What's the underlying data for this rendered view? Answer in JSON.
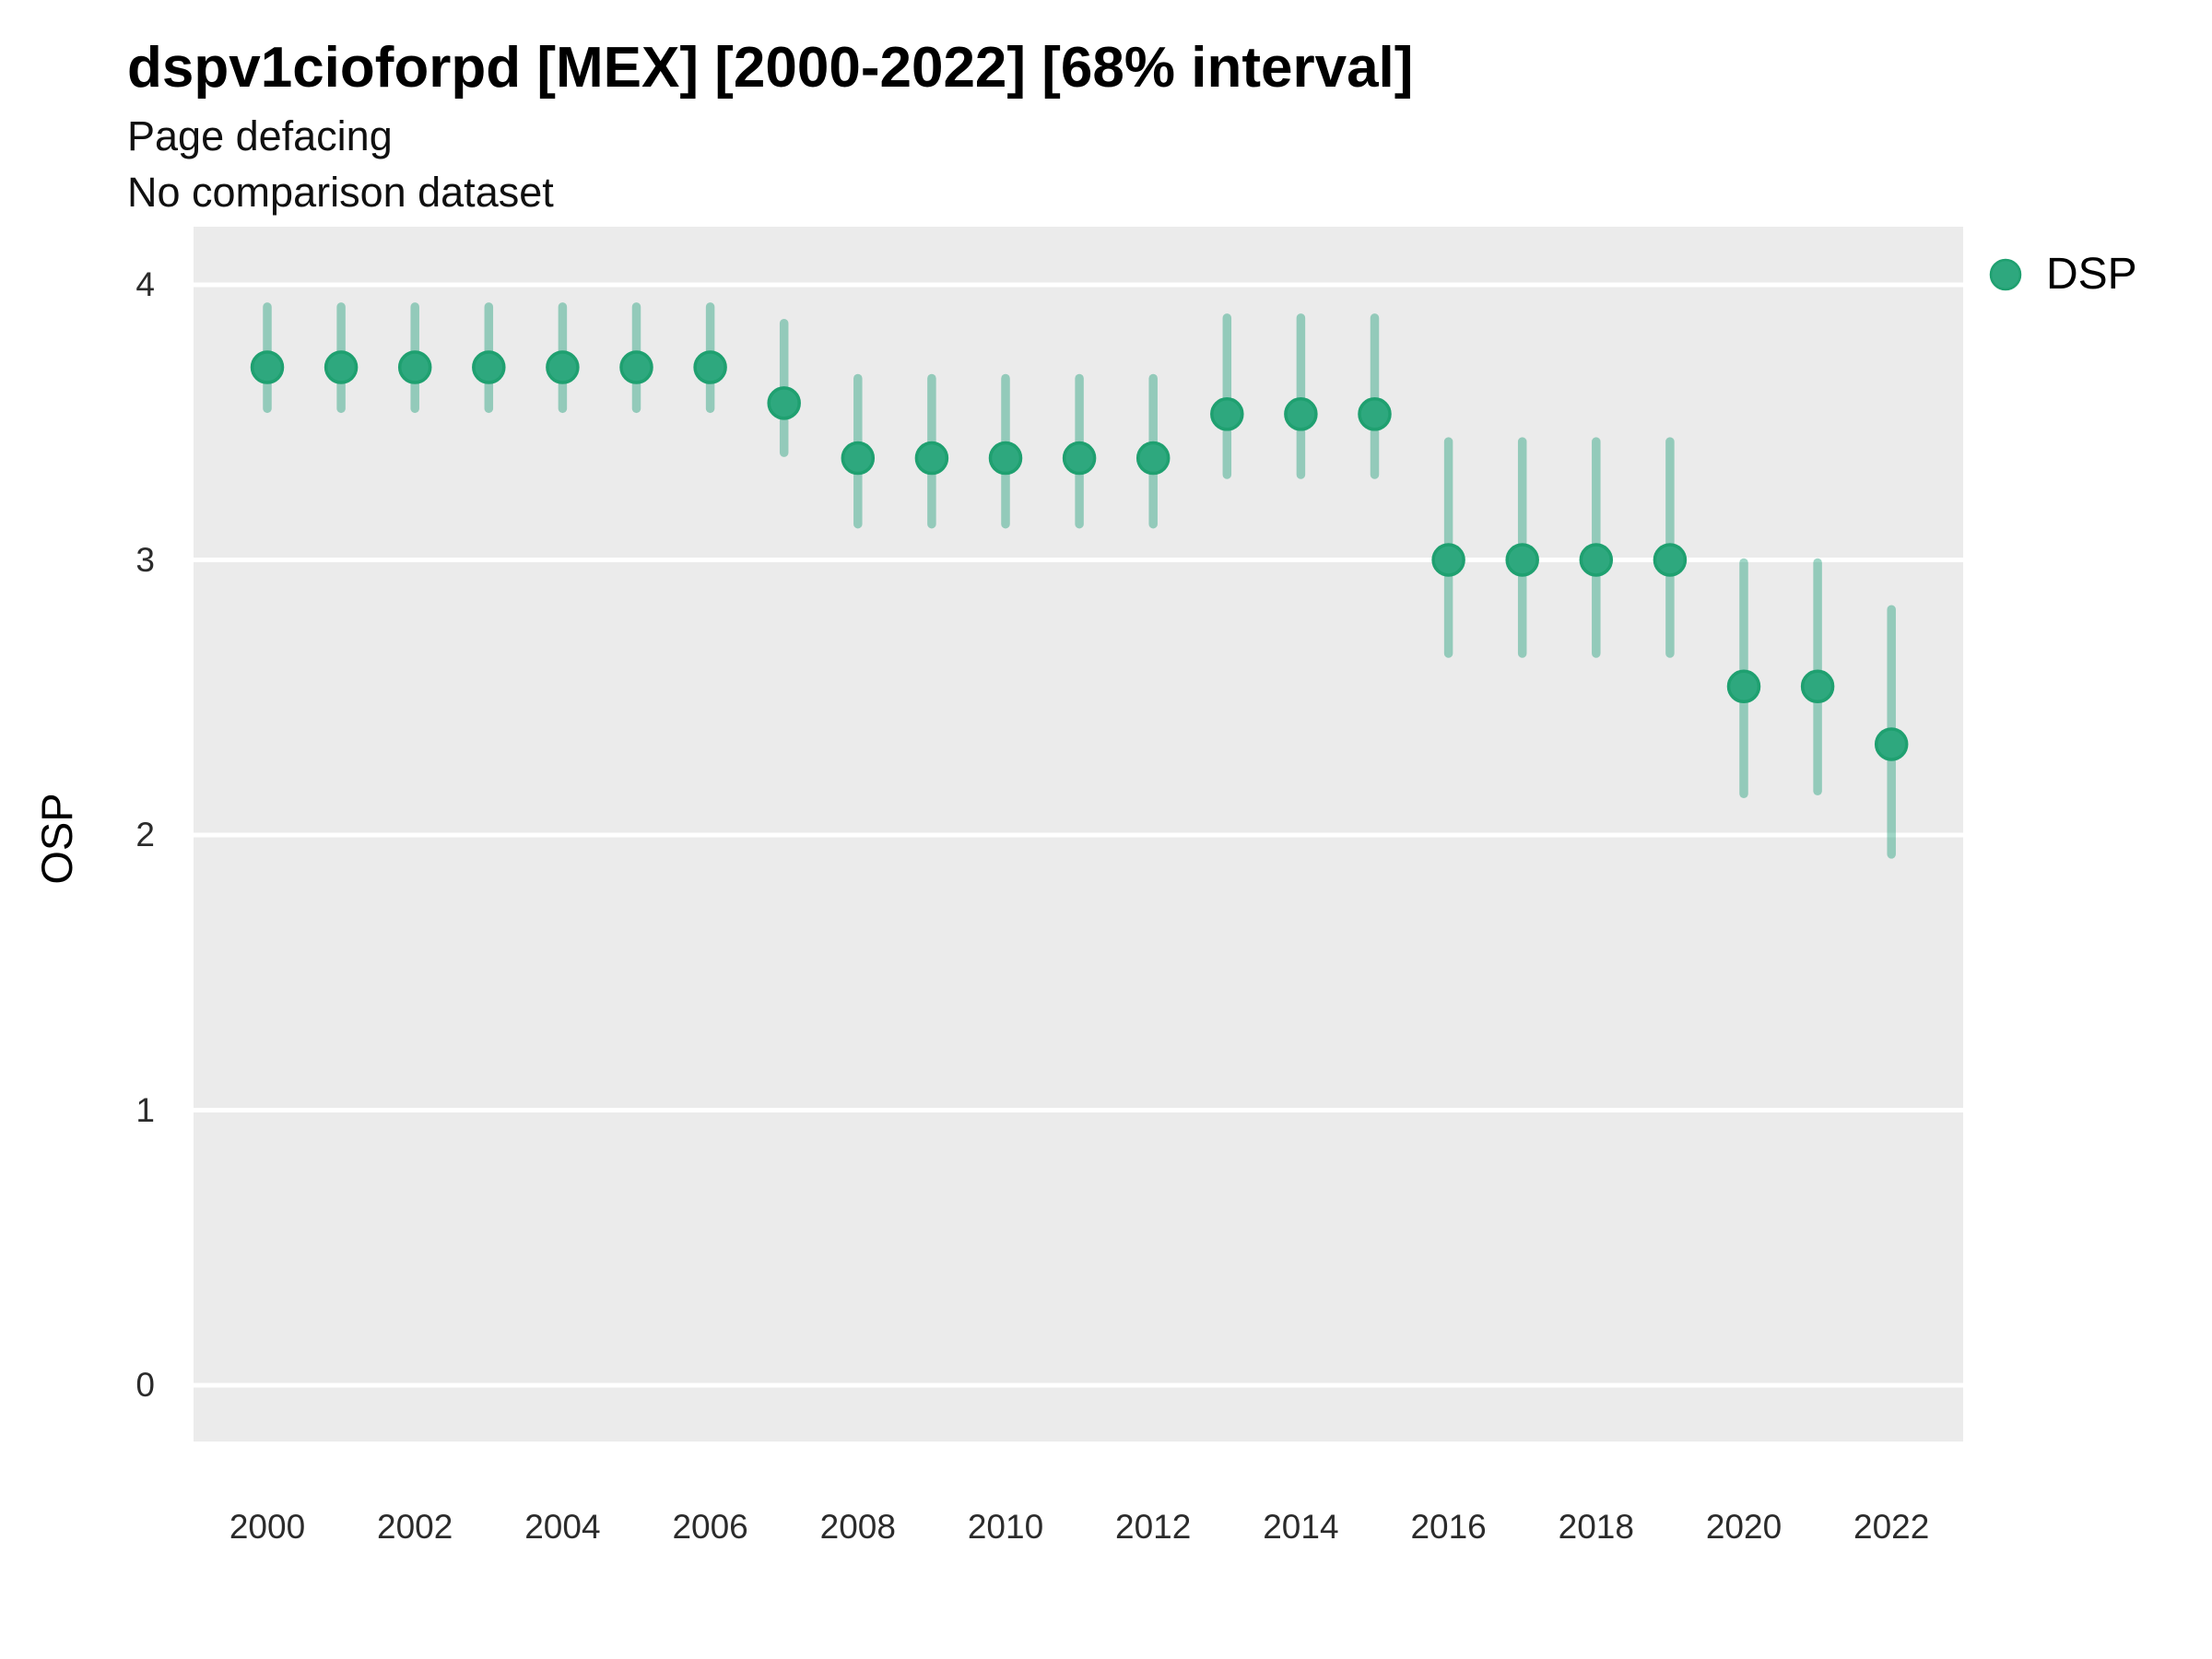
{
  "header": {
    "title": "dspv1cioforpd [MEX] [2000-2022] [68% interval]",
    "subtitle_line1": "Page defacing",
    "subtitle_line2": "No comparison dataset"
  },
  "axes": {
    "y_title": "OSP",
    "y_tick_labels": [
      "4",
      "3",
      "2",
      "1",
      "0"
    ],
    "y_tick_values": [
      4,
      3,
      2,
      1,
      0
    ],
    "x_tick_labels": [
      "2000",
      "2002",
      "2004",
      "2006",
      "2008",
      "2010",
      "2012",
      "2014",
      "2016",
      "2018",
      "2020",
      "2022"
    ],
    "x_tick_values": [
      2000,
      2002,
      2004,
      2006,
      2008,
      2010,
      2012,
      2014,
      2016,
      2018,
      2020,
      2022
    ]
  },
  "legend": {
    "position": "right",
    "items": [
      {
        "label": "DSP",
        "marker": "circle"
      }
    ]
  },
  "colors": {
    "panel_background": "#EBEBEB",
    "gridline": "#FFFFFF",
    "point_fill": "#2EA87E",
    "point_stroke": "#1FA070",
    "interval_bar": "rgba(27,158,119,0.42)",
    "title_text": "#000000",
    "axis_text": "#2b2b2b"
  },
  "chart_data": {
    "type": "scatter",
    "variant": "pointrange",
    "title": "dspv1cioforpd [MEX] [2000-2022] [68% interval]",
    "subtitle": [
      "Page defacing",
      "No comparison dataset"
    ],
    "xlabel": "",
    "ylabel": "OSP",
    "interval": "68%",
    "xlim": [
      1999,
      2023
    ],
    "ylim": [
      -0.19,
      4.22
    ],
    "grid": "horizontal-white-on-grey",
    "legend_position": "right",
    "x": [
      2000,
      2001,
      2002,
      2003,
      2004,
      2005,
      2006,
      2007,
      2008,
      2009,
      2010,
      2011,
      2012,
      2013,
      2014,
      2015,
      2016,
      2017,
      2018,
      2019,
      2020,
      2021,
      2022
    ],
    "series": [
      {
        "name": "DSP",
        "values": [
          3.7,
          3.7,
          3.7,
          3.7,
          3.7,
          3.7,
          3.7,
          3.57,
          3.37,
          3.37,
          3.37,
          3.37,
          3.37,
          3.53,
          3.53,
          3.53,
          3.0,
          3.0,
          3.0,
          3.0,
          2.54,
          2.54,
          2.33
        ],
        "lower": [
          3.55,
          3.55,
          3.55,
          3.55,
          3.55,
          3.55,
          3.55,
          3.39,
          3.13,
          3.13,
          3.13,
          3.13,
          3.13,
          3.31,
          3.31,
          3.31,
          2.66,
          2.66,
          2.66,
          2.66,
          2.15,
          2.16,
          1.93
        ],
        "upper": [
          3.92,
          3.92,
          3.92,
          3.92,
          3.92,
          3.92,
          3.92,
          3.86,
          3.66,
          3.66,
          3.66,
          3.66,
          3.66,
          3.88,
          3.88,
          3.88,
          3.43,
          3.43,
          3.43,
          3.43,
          2.99,
          2.99,
          2.82
        ]
      }
    ]
  }
}
